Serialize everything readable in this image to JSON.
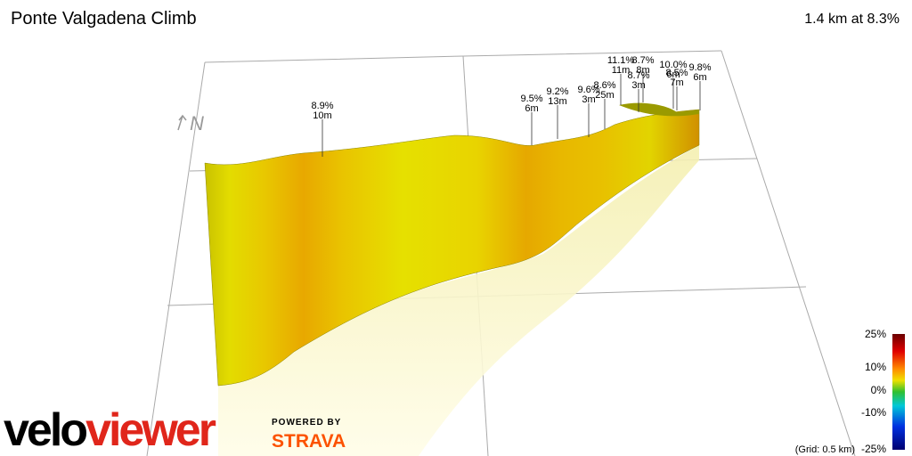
{
  "header": {
    "title": "Ponte Valgadena Climb",
    "summary": "1.4 km at 8.3%"
  },
  "compass": "N",
  "annotations": [
    {
      "grade": "8.9%",
      "length": "10m"
    },
    {
      "grade": "9.5%",
      "length": "6m"
    },
    {
      "grade": "9.2%",
      "length": "13m"
    },
    {
      "grade": "9.6%",
      "length": "3m"
    },
    {
      "grade": "8.6%",
      "length": "25m"
    },
    {
      "grade": "11.1%",
      "length": "11m"
    },
    {
      "grade": "8.7%",
      "length": "8m"
    },
    {
      "grade": "8.7%",
      "length": "3m"
    },
    {
      "grade": "10.0%",
      "length": "6m"
    },
    {
      "grade": "8.5%",
      "length": "7m"
    },
    {
      "grade": "9.8%",
      "length": "6m"
    }
  ],
  "legend": {
    "labels": [
      "25%",
      "10%",
      "0%",
      "-10%",
      "-25%"
    ],
    "grid_note": "(Grid: 0.5 km)"
  },
  "branding": {
    "logo_part1": "velo",
    "logo_part2": "viewer",
    "powered_by": "POWERED BY",
    "partner": "STRAVA"
  }
}
